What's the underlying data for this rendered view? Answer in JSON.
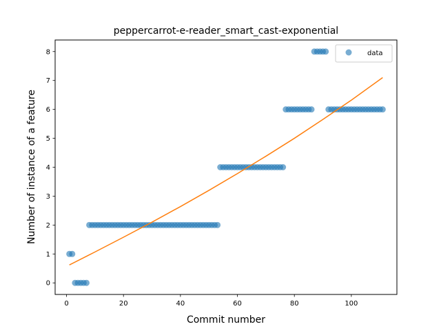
{
  "chart_data": {
    "type": "scatter",
    "title": "peppercarrot-e-reader_smart_cast-exponential",
    "xlabel": "Commit number",
    "ylabel": "Number of instance of a feature",
    "xlim": [
      -4,
      116
    ],
    "ylim": [
      -0.4,
      8.4
    ],
    "xticks": [
      0,
      20,
      40,
      60,
      80,
      100
    ],
    "yticks": [
      0,
      1,
      2,
      3,
      4,
      5,
      6,
      7,
      8
    ],
    "grid": false,
    "legend": {
      "placement": "top-right",
      "entries": [
        "data"
      ]
    },
    "series": [
      {
        "name": "data",
        "kind": "scatter",
        "color": "#1f77b4",
        "segments": [
          {
            "x_start": 1,
            "x_end": 2,
            "y": 1
          },
          {
            "x_start": 3,
            "x_end": 7,
            "y": 0
          },
          {
            "x_start": 8,
            "x_end": 53,
            "y": 2
          },
          {
            "x_start": 54,
            "x_end": 76,
            "y": 4
          },
          {
            "x_start": 77,
            "x_end": 86,
            "y": 6
          },
          {
            "x_start": 87,
            "x_end": 91,
            "y": 8
          },
          {
            "x_start": 92,
            "x_end": 111,
            "y": 6
          }
        ]
      },
      {
        "name": "",
        "kind": "line",
        "color": "#ff7f0e",
        "x": [
          1,
          10,
          20,
          30,
          40,
          50,
          60,
          70,
          80,
          90,
          100,
          111
        ],
        "y": [
          0.62,
          1.07,
          1.58,
          2.1,
          2.64,
          3.2,
          3.78,
          4.38,
          5.0,
          5.65,
          6.32,
          7.1
        ]
      }
    ]
  }
}
